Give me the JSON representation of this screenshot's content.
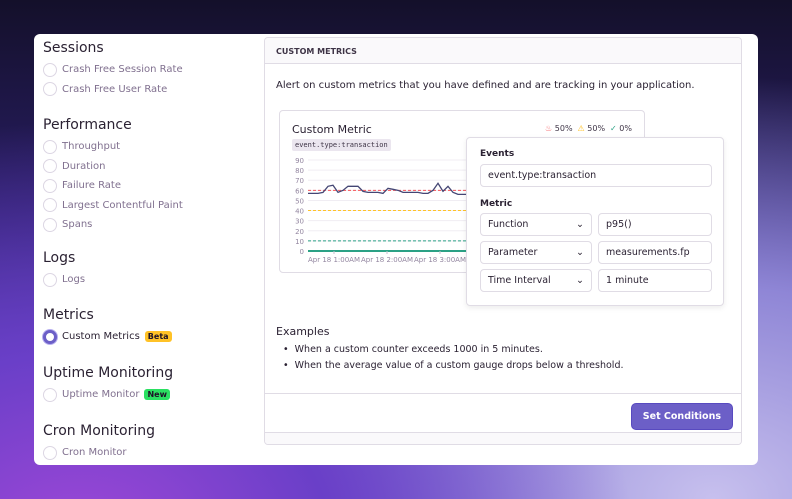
{
  "sidebar": {
    "sections": [
      {
        "title": "Sessions",
        "options": [
          "Crash Free Session Rate",
          "Crash Free User Rate"
        ]
      },
      {
        "title": "Performance",
        "options": [
          "Throughput",
          "Duration",
          "Failure Rate",
          "Largest Contentful Paint",
          "Spans"
        ]
      },
      {
        "title": "Logs",
        "options": [
          "Logs"
        ]
      },
      {
        "title": "Metrics",
        "options": [
          "Custom Metrics"
        ],
        "badge": "Beta",
        "badge_color": "#ffc227",
        "selected": "Custom Metrics"
      },
      {
        "title": "Uptime Monitoring",
        "options": [
          "Uptime Monitor"
        ],
        "badge": "New",
        "badge_color": "#2ae061"
      },
      {
        "title": "Cron Monitoring",
        "options": [
          "Cron Monitor"
        ]
      }
    ]
  },
  "panel": {
    "header": "CUSTOM METRICS",
    "description": "Alert on custom metrics that you have defined and are tracking in your application.",
    "examples_title": "Examples",
    "examples": [
      "When a custom counter exceeds 1000 in 5 minutes.",
      "When the average value of a custom gauge drops below a threshold."
    ],
    "button": "Set Conditions"
  },
  "preview": {
    "title": "Custom Metric",
    "query": "event.type:transaction",
    "stats": {
      "critical": "50%",
      "warning": "50%",
      "resolved": "0%"
    }
  },
  "popover": {
    "events_label": "Events",
    "events_value": "event.type:transaction",
    "metric_label": "Metric",
    "function_label": "Function",
    "function_value": "p95()",
    "parameter_label": "Parameter",
    "parameter_value": "measurements.fp",
    "interval_label": "Time Interval",
    "interval_value": "1 minute"
  },
  "chart_data": {
    "type": "line",
    "y_ticks": [
      0,
      10,
      20,
      30,
      40,
      50,
      60,
      70,
      80,
      90
    ],
    "ylim": [
      0,
      90
    ],
    "x_ticks": [
      "Apr 18 1:00AM",
      "Apr 18 2:00AM",
      "Apr 18 3:00AM"
    ],
    "series": [
      {
        "values": [
          57,
          57,
          57,
          58,
          64,
          65,
          58,
          60,
          64,
          64,
          64,
          59,
          58,
          58,
          58,
          57,
          62,
          61,
          60,
          58,
          58,
          58,
          58,
          57,
          57,
          60,
          67,
          59,
          64,
          58,
          56,
          56,
          56
        ]
      }
    ],
    "thresholds": {
      "critical": 60,
      "warning": 40,
      "resolved": 10
    },
    "colors": {
      "line": "#444674",
      "critical": "#f55459",
      "warning": "#ffc227",
      "resolved": "#2ba185"
    }
  }
}
